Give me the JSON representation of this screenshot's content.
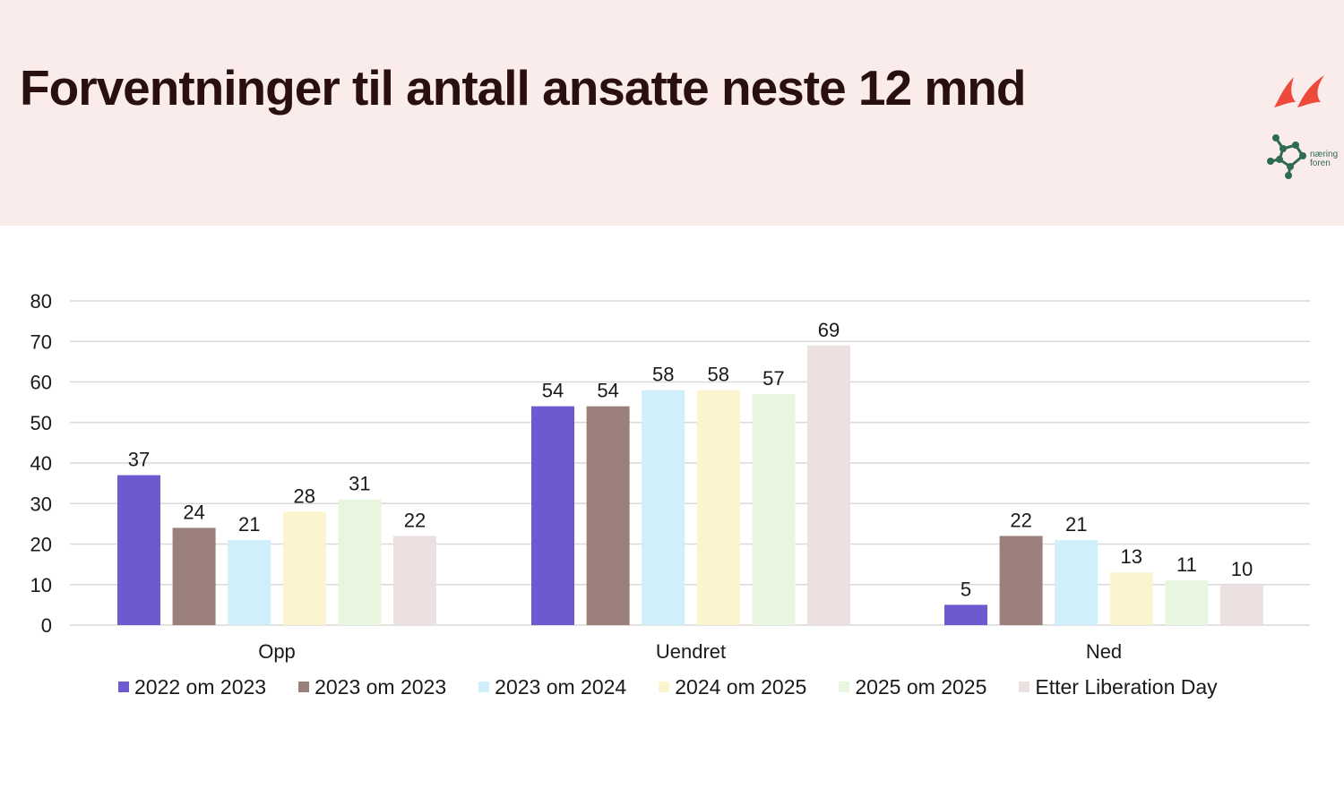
{
  "title": "Forventninger til antall ansatte neste 12 mnd",
  "logos": {
    "primary": "flame-logo-icon",
    "secondary": "network-logo-icon",
    "secondary_text": [
      "næring",
      "foren"
    ]
  },
  "chart_data": {
    "type": "bar",
    "title": "",
    "xlabel": "",
    "ylabel": "",
    "ylim": [
      0,
      80
    ],
    "yticks": [
      0,
      10,
      20,
      30,
      40,
      50,
      60,
      70,
      80
    ],
    "grid": true,
    "legend_position": "bottom",
    "categories": [
      "Opp",
      "Uendret",
      "Ned"
    ],
    "series": [
      {
        "name": "2022 om 2023",
        "color": "#6f59d0",
        "values": [
          37,
          54,
          5
        ]
      },
      {
        "name": "2023 om 2023",
        "color": "#9b7f7a",
        "values": [
          24,
          54,
          22
        ]
      },
      {
        "name": "2023 om 2024",
        "color": "#cfeffb",
        "values": [
          21,
          58,
          21
        ]
      },
      {
        "name": "2024 om 2025",
        "color": "#fbf4cf",
        "values": [
          28,
          58,
          13
        ]
      },
      {
        "name": "2025 om 2025",
        "color": "#e8f6df",
        "values": [
          31,
          57,
          11
        ]
      },
      {
        "name": "Etter Liberation Day",
        "color": "#ede0e0",
        "values": [
          22,
          69,
          10
        ]
      }
    ]
  }
}
